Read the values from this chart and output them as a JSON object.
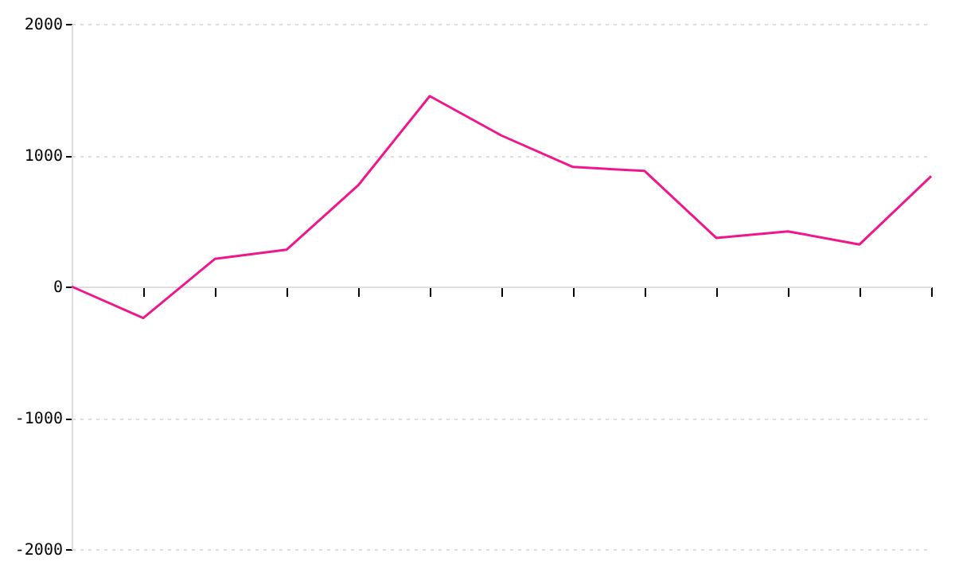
{
  "chart_data": {
    "type": "line",
    "categories": [
      null,
      null,
      null,
      null,
      null,
      null,
      null,
      null,
      null,
      null,
      null,
      null,
      null
    ],
    "series": [
      {
        "color": "#f0168c",
        "values": [
          0,
          -240,
          210,
          280,
          770,
          1450,
          1150,
          910,
          880,
          370,
          420,
          320,
          840
        ]
      }
    ],
    "ylim": [
      -2000,
      2000
    ],
    "yticks": [
      -2000,
      -1000,
      0,
      1000,
      2000
    ],
    "tick_labels": "y",
    "grid": "y",
    "marker": "none",
    "line_style": "solid"
  }
}
